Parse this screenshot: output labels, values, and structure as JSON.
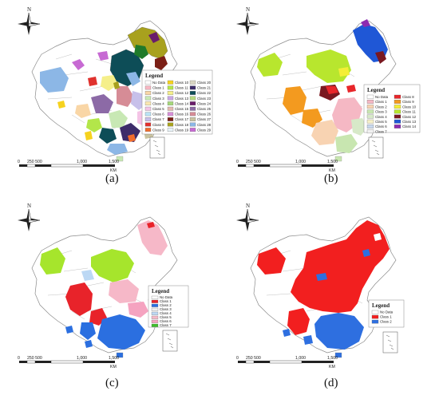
{
  "panels": [
    {
      "id": "a",
      "caption": "(a)",
      "legend_title": "Legend",
      "legend_columns": 3,
      "legend": [
        {
          "label": "No Data",
          "color": "#ffffff"
        },
        {
          "label": "Class 1",
          "color": "#f7b6c2"
        },
        {
          "label": "Class 2",
          "color": "#f9d6a6"
        },
        {
          "label": "Class 3",
          "color": "#c8e8b4"
        },
        {
          "label": "Class 4",
          "color": "#fbe8b0"
        },
        {
          "label": "Class 5",
          "color": "#f4c4e6"
        },
        {
          "label": "Class 6",
          "color": "#b9e3f5"
        },
        {
          "label": "Class 7",
          "color": "#c7c0ea"
        },
        {
          "label": "Class 8",
          "color": "#e0322e"
        },
        {
          "label": "Class 9",
          "color": "#f06c2c"
        },
        {
          "label": "Class 10",
          "color": "#f6d21e"
        },
        {
          "label": "Class 11",
          "color": "#b3e64a"
        },
        {
          "label": "Class 12",
          "color": "#f5ef8a"
        },
        {
          "label": "Class 13",
          "color": "#c8a6e4"
        },
        {
          "label": "Class 14",
          "color": "#a6d87a"
        },
        {
          "label": "Class 15",
          "color": "#e3b9b0"
        },
        {
          "label": "Class 16",
          "color": "#d78fd8"
        },
        {
          "label": "Class 17",
          "color": "#7b1f16"
        },
        {
          "label": "Class 18",
          "color": "#a8a11e"
        },
        {
          "label": "Class 19",
          "color": "#e8f2f7"
        },
        {
          "label": "Class 20",
          "color": "#d9d6c3"
        },
        {
          "label": "Class 21",
          "color": "#3d2c6a"
        },
        {
          "label": "Class 22",
          "color": "#0d4d57"
        },
        {
          "label": "Class 23",
          "color": "#b7d97f"
        },
        {
          "label": "Class 24",
          "color": "#6a1c6b"
        },
        {
          "label": "Class 25",
          "color": "#8c6aa6"
        },
        {
          "label": "Class 26",
          "color": "#d68c96"
        },
        {
          "label": "Class 27",
          "color": "#c9c3a0"
        },
        {
          "label": "Class 28",
          "color": "#8cb7e6"
        },
        {
          "label": "Class 29",
          "color": "#c76ad3"
        }
      ],
      "scale_labels": [
        "0",
        "250 500",
        "1,000",
        "1,500"
      ],
      "scale_unit": "KM",
      "north": "N"
    },
    {
      "id": "b",
      "caption": "(b)",
      "legend_title": "Legend",
      "legend_columns": 2,
      "legend": [
        {
          "label": "No Data",
          "color": "#ffffff"
        },
        {
          "label": "Class 1",
          "color": "#f5b8c4"
        },
        {
          "label": "Class 2",
          "color": "#f8d3b2"
        },
        {
          "label": "Class 3",
          "color": "#c8e6b0"
        },
        {
          "label": "Class 4",
          "color": "#d7e9c8"
        },
        {
          "label": "Class 5",
          "color": "#f6f0c9"
        },
        {
          "label": "Class 6",
          "color": "#c9d9ee"
        },
        {
          "label": "Class 7",
          "color": "#f2f2f2"
        },
        {
          "label": "Class 8",
          "color": "#e8262a"
        },
        {
          "label": "Class 9",
          "color": "#f39a1f"
        },
        {
          "label": "Class 10",
          "color": "#f4ee36"
        },
        {
          "label": "Class 11",
          "color": "#b8e62e"
        },
        {
          "label": "Class 12",
          "color": "#7a1820"
        },
        {
          "label": "Class 13",
          "color": "#1f57d6"
        },
        {
          "label": "Class 14",
          "color": "#8d2bb0"
        }
      ],
      "scale_labels": [
        "0",
        "250 500",
        "1,000",
        "1,500"
      ],
      "scale_unit": "KM",
      "north": "N"
    },
    {
      "id": "c",
      "caption": "(c)",
      "legend_title": "Legend",
      "legend_columns": 1,
      "legend": [
        {
          "label": "No Data",
          "color": "#ffffff"
        },
        {
          "label": "Class 1",
          "color": "#e8232a"
        },
        {
          "label": "Class 2",
          "color": "#2b6fe0"
        },
        {
          "label": "Class 3",
          "color": "#f0f0f0"
        },
        {
          "label": "Class 4",
          "color": "#bcd8f4"
        },
        {
          "label": "Class 5",
          "color": "#f6b8c8"
        },
        {
          "label": "Class 6",
          "color": "#f5a3c0"
        },
        {
          "label": "Class 7",
          "color": "#3fbf2a"
        }
      ],
      "scale_labels": [
        "0",
        "250 500",
        "1,000",
        "1,500"
      ],
      "scale_unit": "KM",
      "north": "N"
    },
    {
      "id": "d",
      "caption": "(d)",
      "legend_title": "Legend",
      "legend_columns": 1,
      "legend": [
        {
          "label": "No Data",
          "color": "#ffffff"
        },
        {
          "label": "Class 1",
          "color": "#f21f1f"
        },
        {
          "label": "Class 2",
          "color": "#2e6fe0"
        }
      ],
      "scale_labels": [
        "0",
        "250 500",
        "1,000",
        "1,500"
      ],
      "scale_unit": "KM",
      "north": "N"
    }
  ]
}
